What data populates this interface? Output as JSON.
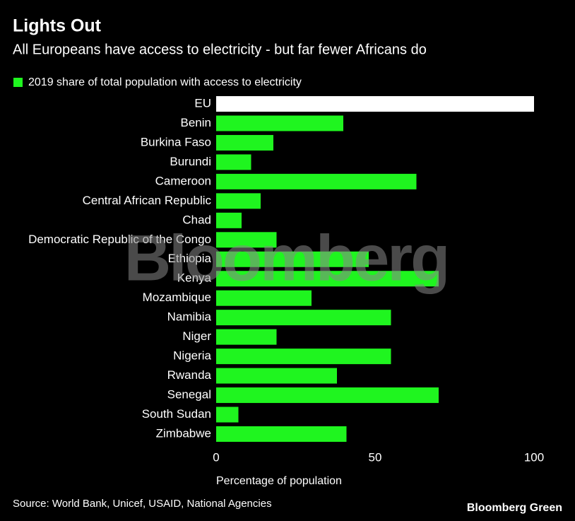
{
  "chart_data": {
    "type": "barh",
    "title": "Lights Out",
    "subtitle": "All Europeans have access to electricity - but far fewer Africans do",
    "series_name": "2019 share of total population with access to electricity",
    "categories": [
      "EU",
      "Benin",
      "Burkina Faso",
      "Burundi",
      "Cameroon",
      "Central African Republic",
      "Chad",
      "Democratic Republic of the Congo",
      "Ethiopia",
      "Kenya",
      "Mozambique",
      "Namibia",
      "Niger",
      "Nigeria",
      "Rwanda",
      "Senegal",
      "South Sudan",
      "Zimbabwe"
    ],
    "values": [
      100,
      40,
      18,
      11,
      63,
      14,
      8,
      19,
      48,
      70,
      30,
      55,
      19,
      55,
      38,
      70,
      7,
      41
    ],
    "color": "#1ff51f",
    "highlight": {
      "index": 0,
      "color": "#ffffff"
    },
    "xlim": [
      0,
      100
    ],
    "xticks": [
      0,
      50,
      100
    ],
    "xlabel": "Percentage of population",
    "grid": false,
    "source": "Source: World Bank, Unicef, USAID, National Agencies",
    "brand": "Bloomberg Green",
    "watermark": "Bloomberg"
  }
}
